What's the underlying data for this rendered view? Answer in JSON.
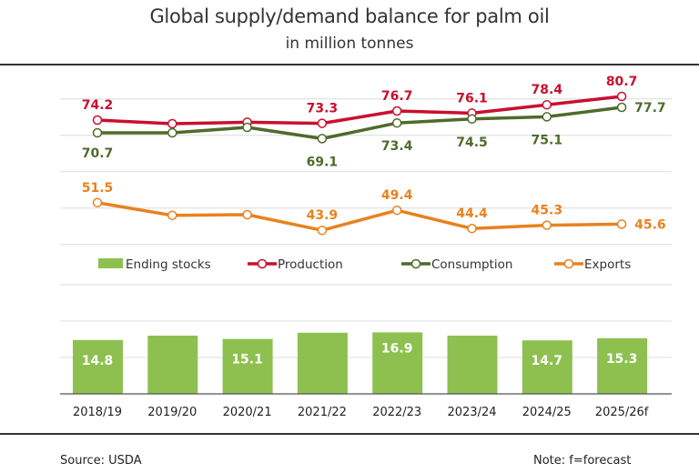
{
  "title": "Global supply/demand balance for palm oil",
  "subtitle": "in million tonnes",
  "footer": {
    "source": "Source: USDA",
    "note": "Note: f=forecast"
  },
  "colors": {
    "production": "#c8102e",
    "consumption": "#4e6b2a",
    "exports": "#e8821e",
    "stocks": "#8dc04f"
  },
  "chart_data": {
    "type": "bar+line",
    "title": "Global supply/demand balance for palm oil",
    "subtitle": "in million tonnes",
    "categories": [
      "2018/19",
      "2019/20",
      "2020/21",
      "2021/22",
      "2022/23",
      "2023/24",
      "2024/25",
      "2025/26f"
    ],
    "line_ylim": [
      40,
      80
    ],
    "bar_ylim": [
      0,
      30
    ],
    "grid": true,
    "legend": "middle",
    "series": [
      {
        "key": "production",
        "name": "Production",
        "type": "line",
        "values": [
          74.2,
          73.2,
          73.6,
          73.3,
          76.7,
          76.1,
          78.4,
          80.7
        ],
        "labels": [
          "74.2",
          null,
          null,
          "73.3",
          "76.7",
          "76.1",
          "78.4",
          "80.7"
        ]
      },
      {
        "key": "consumption",
        "name": "Consumption",
        "type": "line",
        "values": [
          70.7,
          70.7,
          72.2,
          69.1,
          73.4,
          74.5,
          75.1,
          77.7
        ],
        "labels": [
          "70.7",
          null,
          null,
          "69.1",
          "73.4",
          "74.5",
          "75.1",
          "77.7"
        ]
      },
      {
        "key": "exports",
        "name": "Exports",
        "type": "line",
        "values": [
          51.5,
          48.0,
          48.2,
          43.9,
          49.4,
          44.4,
          45.3,
          45.6
        ],
        "labels": [
          "51.5",
          null,
          null,
          "43.9",
          "49.4",
          "44.4",
          "45.3",
          "45.6"
        ]
      },
      {
        "key": "stocks",
        "name": "Ending stocks",
        "type": "bar",
        "values": [
          14.8,
          16.0,
          15.1,
          16.8,
          16.9,
          16.0,
          14.7,
          15.3
        ],
        "labels": [
          "14.8",
          null,
          "15.1",
          null,
          "16.9",
          null,
          "14.7",
          "15.3"
        ]
      }
    ]
  }
}
